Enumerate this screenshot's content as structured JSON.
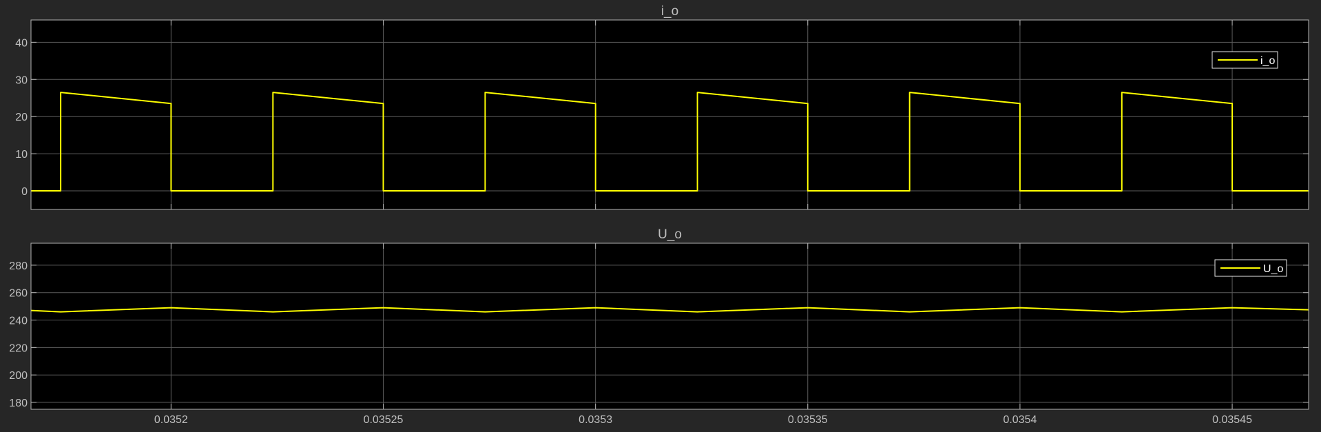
{
  "theme": {
    "figure_bg": "#262626",
    "axes_bg": "#000000",
    "axes_border": "#b3b3b3",
    "grid": "#5c5c5c",
    "text": "#bfbfbf",
    "trace": "#ffff00"
  },
  "chart_data": [
    {
      "type": "line",
      "title": "i_o",
      "xlabel": "",
      "ylabel": "",
      "xlim": [
        0.035167,
        0.035468
      ],
      "ylim": [
        -5,
        46
      ],
      "xticks": [
        0.0352,
        0.03525,
        0.0353,
        0.03535,
        0.0354,
        0.03545
      ],
      "xtick_labels": [],
      "yticks": [
        0,
        10,
        20,
        30,
        40
      ],
      "ytick_labels": [
        "0",
        "10",
        "20",
        "30",
        "40"
      ],
      "grid": true,
      "legend": {
        "position": "top-right",
        "entries": [
          "i_o"
        ]
      },
      "series": [
        {
          "name": "i_o",
          "color": "#ffff00",
          "x": [
            0.035167,
            0.035174,
            0.035174,
            0.0352,
            0.0352,
            0.035224,
            0.035224,
            0.03525,
            0.03525,
            0.035274,
            0.035274,
            0.0353,
            0.0353,
            0.035324,
            0.035324,
            0.03535,
            0.03535,
            0.035374,
            0.035374,
            0.0354,
            0.0354,
            0.035424,
            0.035424,
            0.03545,
            0.03545,
            0.035468
          ],
          "y": [
            0,
            0,
            26.5,
            23.5,
            0,
            0,
            26.5,
            23.5,
            0,
            0,
            26.5,
            23.5,
            0,
            0,
            26.5,
            23.5,
            0,
            0,
            26.5,
            23.5,
            0,
            0,
            26.5,
            23.5,
            0,
            0
          ]
        }
      ]
    },
    {
      "type": "line",
      "title": "U_o",
      "xlabel": "",
      "ylabel": "",
      "xlim": [
        0.035167,
        0.035468
      ],
      "ylim": [
        175,
        296
      ],
      "xticks": [
        0.0352,
        0.03525,
        0.0353,
        0.03535,
        0.0354,
        0.03545
      ],
      "xtick_labels": [
        "0.0352",
        "0.03525",
        "0.0353",
        "0.03535",
        "0.0354",
        "0.03545"
      ],
      "yticks": [
        180,
        200,
        220,
        240,
        260,
        280
      ],
      "ytick_labels": [
        "180",
        "200",
        "220",
        "240",
        "260",
        "280"
      ],
      "grid": true,
      "legend": {
        "position": "top-right",
        "entries": [
          "U_o"
        ]
      },
      "series": [
        {
          "name": "U_o",
          "color": "#ffff00",
          "x": [
            0.035167,
            0.035174,
            0.0352,
            0.035224,
            0.03525,
            0.035274,
            0.0353,
            0.035324,
            0.03535,
            0.035374,
            0.0354,
            0.035424,
            0.03545,
            0.035468
          ],
          "y": [
            247,
            246,
            249,
            246,
            249,
            246,
            249,
            246,
            249,
            246,
            249,
            246,
            249,
            247.5
          ]
        }
      ]
    }
  ]
}
